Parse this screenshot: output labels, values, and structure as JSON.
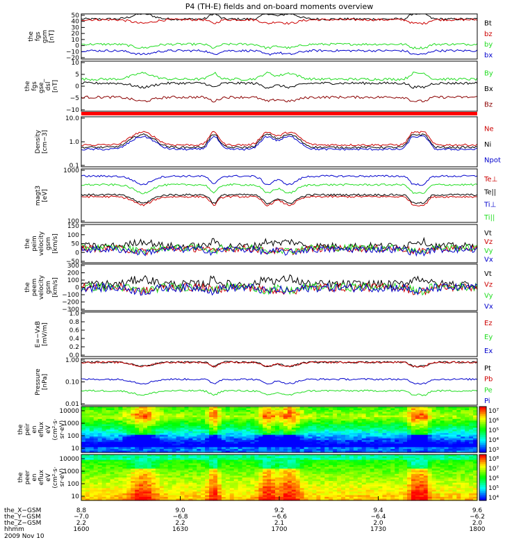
{
  "title": "P4 (TH-E) fields and on-board moments overview",
  "colors": {
    "black": "#000000",
    "red": "#cc0000",
    "darkred": "#8b0000",
    "green": "#22dd22",
    "blue": "#0000cc"
  },
  "chart_data": [
    {
      "type": "line",
      "ylabel": [
        "the",
        "fgs",
        "gsm",
        "[nT]"
      ],
      "ylim": [
        -20,
        50
      ],
      "yticks": [
        "50",
        "40",
        "30",
        "20",
        "10",
        "0",
        "−10",
        "−20"
      ],
      "series": [
        {
          "name": "Bt",
          "color": "#000000",
          "level": 42
        },
        {
          "name": "bz",
          "color": "#cc0000",
          "level": 41
        },
        {
          "name": "by",
          "color": "#22dd22",
          "level": 3
        },
        {
          "name": "bx",
          "color": "#0000cc",
          "level": -7
        }
      ]
    },
    {
      "type": "line",
      "ylabel": [
        "the",
        "fgs",
        "gse_",
        "dsl",
        "[nT]"
      ],
      "ylim": [
        -15,
        10
      ],
      "yticks": [
        "10",
        "5",
        "0",
        "−5",
        "−10"
      ],
      "series": [
        {
          "name": "By",
          "color": "#22dd22",
          "level": 1
        },
        {
          "name": "Bx",
          "color": "#000000",
          "level": -1
        },
        {
          "name": "Bz",
          "color": "#8b0000",
          "level": -8
        }
      ]
    },
    {
      "type": "line",
      "log": true,
      "ylabel": [
        "Density",
        "[cm−3]"
      ],
      "ylim": [
        0.1,
        10
      ],
      "yticks": [
        "10.0",
        "1.0",
        "0.1"
      ],
      "series": [
        {
          "name": "Ne",
          "color": "#cc0000",
          "level": 0.75
        },
        {
          "name": "Ni",
          "color": "#000000",
          "level": 0.6
        },
        {
          "name": "Npot",
          "color": "#0000cc",
          "level": 0.5
        }
      ]
    },
    {
      "type": "line",
      "log": true,
      "ylabel": [
        "magt3",
        "[eV]"
      ],
      "ylim": [
        30,
        5000
      ],
      "yticks": [
        "1000",
        "100"
      ],
      "series": [
        {
          "name": "Te⊥",
          "color": "#cc0000",
          "level": 350
        },
        {
          "name": "Te||",
          "color": "#000000",
          "level": 420
        },
        {
          "name": "Ti⊥",
          "color": "#0000cc",
          "level": 2500
        },
        {
          "name": "Ti||",
          "color": "#22dd22",
          "level": 1100
        }
      ]
    },
    {
      "type": "line",
      "ylabel": [
        "the",
        "peim",
        "velocity",
        "gsm",
        "[km/s]"
      ],
      "ylim": [
        -80,
        150
      ],
      "yticks": [
        "150",
        "100",
        "50",
        "0",
        "−50"
      ],
      "series": [
        {
          "name": "Vt",
          "color": "#000000",
          "level": 20
        },
        {
          "name": "Vz",
          "color": "#cc0000",
          "level": 5
        },
        {
          "name": "Vy",
          "color": "#22dd22",
          "level": 10
        },
        {
          "name": "Vx",
          "color": "#0000cc",
          "level": 0
        }
      ]
    },
    {
      "type": "line",
      "ylabel": [
        "the",
        "peem",
        "velocity",
        "gsm",
        "[km/s]"
      ],
      "ylim": [
        -300,
        300
      ],
      "yticks": [
        "300",
        "200",
        "100",
        "0",
        "−100",
        "−200",
        "−300"
      ],
      "series": [
        {
          "name": "Vt",
          "color": "#000000",
          "level": 40
        },
        {
          "name": "Vz",
          "color": "#cc0000",
          "level": 0
        },
        {
          "name": "Vy",
          "color": "#22dd22",
          "level": 5
        },
        {
          "name": "Vx",
          "color": "#0000cc",
          "level": -5
        }
      ]
    },
    {
      "type": "line",
      "empty": true,
      "ylabel": [
        "E=−VxB",
        "[mV/m]"
      ],
      "ylim": [
        0,
        1
      ],
      "yticks": [
        "1.0",
        "0.8",
        "0.6",
        "0.4",
        "0.2",
        "0.0"
      ],
      "series": [
        {
          "name": "Ez",
          "color": "#cc0000"
        },
        {
          "name": "Ey",
          "color": "#22dd22"
        },
        {
          "name": "Ex",
          "color": "#0000cc"
        }
      ]
    },
    {
      "type": "line",
      "log": true,
      "ylabel": [
        "Pressure",
        "[nPa]"
      ],
      "ylim": [
        0.01,
        1.3
      ],
      "yticks": [
        "1.00",
        "0.10",
        "0.01"
      ],
      "series": [
        {
          "name": "Pt",
          "color": "#000000",
          "level": 0.9
        },
        {
          "name": "Pb",
          "color": "#cc0000",
          "level": 0.88
        },
        {
          "name": "Pe",
          "color": "#22dd22",
          "level": 0.045
        },
        {
          "name": "Pi",
          "color": "#0000cc",
          "level": 0.15
        }
      ]
    },
    {
      "type": "heatmap",
      "ylabel": [
        "the",
        "peir",
        "en",
        "eflux",
        "eV",
        "(cm²·s·",
        "sr·eV)"
      ],
      "yticks": [
        "10000",
        "1000",
        "100",
        "10"
      ],
      "colorbar_ticks": [
        "10⁷",
        "10⁶",
        "10⁵",
        "10⁴",
        "10³"
      ]
    },
    {
      "type": "heatmap",
      "ylabel": [
        "the",
        "peer",
        "en",
        "eflux",
        "eV",
        "(cm²·s·",
        "sr·eV)"
      ],
      "yticks": [
        "10000",
        "1000",
        "100",
        "10"
      ],
      "colorbar_ticks": [
        "10⁸",
        "10⁷",
        "10⁶",
        "10⁵",
        "10⁴"
      ]
    }
  ],
  "x_axis": {
    "row_labels": [
      "the_X−GSM",
      "the_Y−GSM",
      "the_Z−GSM",
      "hhmm",
      "2009 Nov 10"
    ],
    "ticks": [
      {
        "x": "8.8",
        "y": "−7.0",
        "z": "2.2",
        "hhmm": "1600"
      },
      {
        "x": "9.0",
        "y": "−6.8",
        "z": "2.2",
        "hhmm": "1630"
      },
      {
        "x": "9.2",
        "y": "−6.6",
        "z": "2.1",
        "hhmm": "1700"
      },
      {
        "x": "9.4",
        "y": "−6.4",
        "z": "2.0",
        "hhmm": "1730"
      },
      {
        "x": "9.6",
        "y": "−6.2",
        "z": "2.0",
        "hhmm": "1800"
      }
    ]
  }
}
